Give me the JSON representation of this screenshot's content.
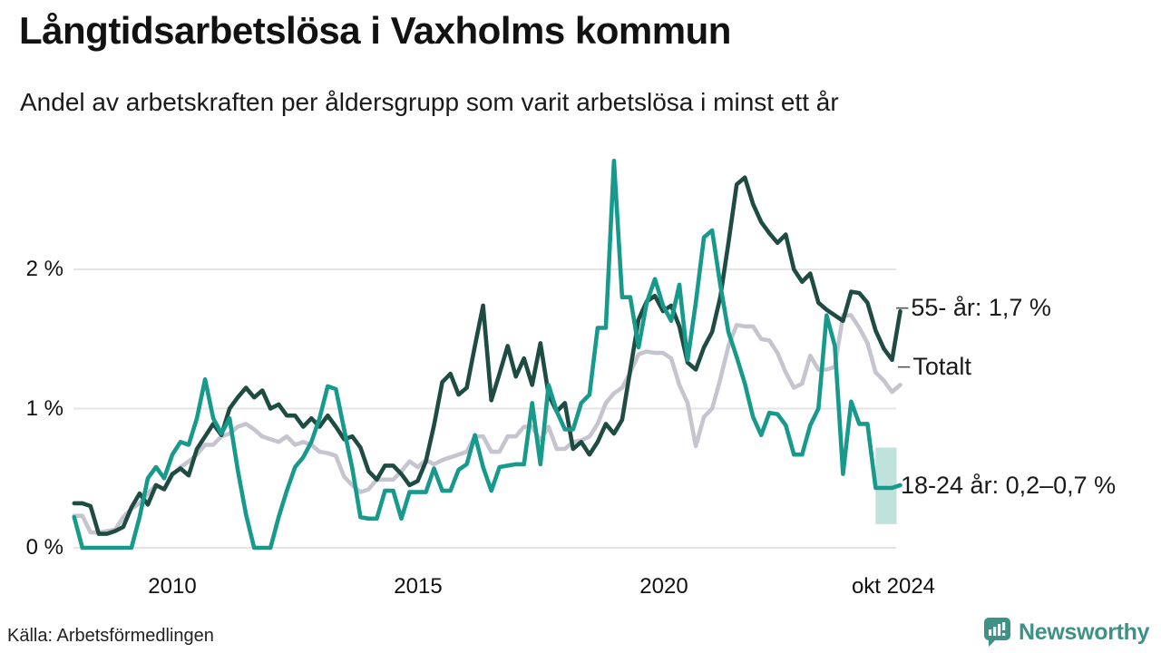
{
  "header": {
    "title": "Långtidsarbetslösa i Vaxholms kommun",
    "subtitle": "Andel av arbetskraften per åldersgrupp som varit arbetslösa i minst ett år"
  },
  "annotations": [
    {
      "tick": "–",
      "label": "55- år: 1,7 %"
    },
    {
      "tick": "–",
      "label": "Totalt"
    },
    {
      "tick": "",
      "label": "18-24 år: 0,2–0,7 %"
    }
  ],
  "footer": {
    "source": "Källa: Arbetsförmedlingen",
    "logo_text": "Newsworthy",
    "logo_color": "#3d9186"
  },
  "chart_data": {
    "type": "line",
    "title": "Långtidsarbetslösa i Vaxholms kommun",
    "subtitle": "Andel av arbetskraften per åldersgrupp som varit arbetslösa i minst ett år",
    "unit": "%",
    "x_start_year": 2008.0,
    "x_step_years": 0.166667,
    "x_ticks": [
      {
        "year": 2010,
        "label": "2010"
      },
      {
        "year": 2015,
        "label": "2015"
      },
      {
        "year": 2020,
        "label": "2020"
      },
      {
        "year": 2024.75,
        "label": "okt 2024"
      }
    ],
    "y_ticks": [
      {
        "value": 0,
        "label": "0 %"
      },
      {
        "value": 1,
        "label": "1 %"
      },
      {
        "value": 2,
        "label": "2 %"
      }
    ],
    "ylim": [
      0,
      2.9
    ],
    "grid": true,
    "grid_color": "#e4e4e4",
    "band": {
      "series": "18-24 år",
      "year_start": 2024.33,
      "year_end": 2024.76,
      "low": 0.17,
      "high": 0.72,
      "label_low": "0,2",
      "label_high": "0,7",
      "color": "#a9d8d0"
    },
    "series": [
      {
        "name": "Totalt",
        "color": "#c6c4cf",
        "end_value_label": "Totalt",
        "values": [
          0.23,
          0.23,
          0.11,
          0.11,
          0.12,
          0.13,
          0.22,
          0.28,
          0.32,
          0.39,
          0.45,
          0.42,
          0.52,
          0.58,
          0.62,
          0.67,
          0.74,
          0.74,
          0.8,
          0.82,
          0.87,
          0.89,
          0.85,
          0.8,
          0.78,
          0.76,
          0.8,
          0.74,
          0.76,
          0.74,
          0.69,
          0.68,
          0.66,
          0.51,
          0.45,
          0.4,
          0.42,
          0.49,
          0.49,
          0.49,
          0.55,
          0.62,
          0.58,
          0.63,
          0.6,
          0.63,
          0.65,
          0.67,
          0.69,
          0.8,
          0.8,
          0.69,
          0.69,
          0.8,
          0.8,
          0.87,
          0.87,
          0.77,
          0.87,
          0.71,
          0.71,
          0.76,
          0.77,
          0.8,
          0.89,
          1.04,
          1.11,
          1.15,
          1.26,
          1.39,
          1.41,
          1.4,
          1.4,
          1.36,
          1.17,
          1.04,
          0.73,
          0.94,
          1.0,
          1.21,
          1.45,
          1.6,
          1.59,
          1.59,
          1.5,
          1.49,
          1.4,
          1.26,
          1.15,
          1.18,
          1.38,
          1.28,
          1.28,
          1.3,
          1.67,
          1.67,
          1.58,
          1.47,
          1.26,
          1.2,
          1.12,
          1.17
        ]
      },
      {
        "name": "55- år",
        "color": "#1e4c43",
        "end_value_label": "55- år: 1,7 %",
        "values": [
          0.32,
          0.32,
          0.3,
          0.1,
          0.1,
          0.12,
          0.15,
          0.29,
          0.39,
          0.31,
          0.45,
          0.42,
          0.53,
          0.57,
          0.52,
          0.71,
          0.8,
          0.89,
          0.81,
          1.0,
          1.08,
          1.15,
          1.08,
          1.13,
          1.0,
          1.03,
          0.95,
          0.95,
          0.87,
          0.93,
          0.87,
          0.95,
          0.87,
          0.78,
          0.8,
          0.72,
          0.55,
          0.49,
          0.59,
          0.59,
          0.53,
          0.45,
          0.48,
          0.62,
          0.88,
          1.19,
          1.25,
          1.1,
          1.15,
          1.45,
          1.74,
          1.06,
          1.25,
          1.45,
          1.23,
          1.36,
          1.17,
          1.47,
          1.1,
          0.98,
          1.04,
          0.71,
          0.76,
          0.67,
          0.76,
          0.89,
          0.82,
          0.92,
          1.28,
          1.64,
          1.77,
          1.81,
          1.7,
          1.74,
          1.59,
          1.33,
          1.28,
          1.44,
          1.55,
          1.8,
          2.19,
          2.61,
          2.66,
          2.47,
          2.34,
          2.26,
          2.19,
          2.25,
          2.0,
          1.91,
          1.97,
          1.76,
          1.71,
          1.67,
          1.63,
          1.84,
          1.83,
          1.76,
          1.56,
          1.43,
          1.35,
          1.7
        ]
      },
      {
        "name": "18-24 år",
        "color": "#17998c",
        "end_value_label": "18-24 år: 0,2–0,7 %",
        "values": [
          0.22,
          0.0,
          0.0,
          0.0,
          0.0,
          0.0,
          0.0,
          0.0,
          0.22,
          0.5,
          0.58,
          0.5,
          0.67,
          0.76,
          0.74,
          0.93,
          1.21,
          0.93,
          0.82,
          0.93,
          0.56,
          0.24,
          0.0,
          0.0,
          0.0,
          0.22,
          0.41,
          0.58,
          0.65,
          0.76,
          0.93,
          1.16,
          1.14,
          0.85,
          0.57,
          0.22,
          0.21,
          0.21,
          0.41,
          0.41,
          0.21,
          0.4,
          0.4,
          0.4,
          0.57,
          0.41,
          0.41,
          0.56,
          0.6,
          0.81,
          0.58,
          0.41,
          0.58,
          0.59,
          0.6,
          0.6,
          1.04,
          0.6,
          1.17,
          0.98,
          0.85,
          0.85,
          1.04,
          1.1,
          1.58,
          1.58,
          2.78,
          1.8,
          1.8,
          1.44,
          1.76,
          1.93,
          1.74,
          1.63,
          1.89,
          1.35,
          1.76,
          2.23,
          2.28,
          1.89,
          1.55,
          1.37,
          1.18,
          0.94,
          0.81,
          0.97,
          0.96,
          0.88,
          0.67,
          0.67,
          0.88,
          1.0,
          1.67,
          1.45,
          0.53,
          1.05,
          0.89,
          0.89,
          0.43,
          0.43,
          0.43,
          0.45
        ]
      }
    ],
    "legend_position": "right-annotations"
  }
}
